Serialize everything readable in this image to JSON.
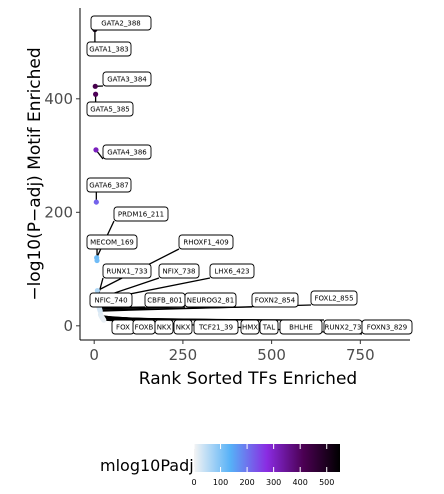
{
  "chart_data": {
    "type": "scatter",
    "title": "",
    "xlabel": "Rank Sorted TFs Enriched",
    "ylabel": "−log10(P−adj) Motif Enriched",
    "xlim": [
      -40,
      890
    ],
    "ylim": [
      -25,
      560
    ],
    "x_ticks": [
      0,
      250,
      500,
      750
    ],
    "x_tick_labels": [
      "0",
      "250",
      "500",
      "750"
    ],
    "y_ticks": [
      0,
      200,
      400
    ],
    "y_tick_labels": [
      "0",
      "200",
      "400"
    ],
    "grid": false,
    "points": [
      {
        "label": "GATA2_388",
        "x": 1,
        "y": 532
      },
      {
        "label": "GATA1_383",
        "x": 2,
        "y": 522
      },
      {
        "label": "GATA3_384",
        "x": 3,
        "y": 422
      },
      {
        "label": "GATA5_385",
        "x": 4,
        "y": 408
      },
      {
        "label": "GATA4_386",
        "x": 5,
        "y": 310
      },
      {
        "label": "GATA6_387",
        "x": 6,
        "y": 218
      },
      {
        "label": "PRDM16_211",
        "x": 7,
        "y": 120
      },
      {
        "label": "MECOM_169",
        "x": 8,
        "y": 115
      },
      {
        "label": "RHOXF1_409",
        "x": 9,
        "y": 62
      },
      {
        "label": "RUNX1_733",
        "x": 10,
        "y": 50
      },
      {
        "label": "NFIX_738",
        "x": 11,
        "y": 48
      },
      {
        "label": "LHX6_423",
        "x": 12,
        "y": 45
      },
      {
        "label": "NFIC_740",
        "x": 13,
        "y": 38
      },
      {
        "label": "CBFB_801",
        "x": 14,
        "y": 32
      },
      {
        "label": "NEUROG2_81",
        "x": 15,
        "y": 30
      },
      {
        "label": "FOXN2_854",
        "x": 16,
        "y": 28
      },
      {
        "label": "FOXL2_855",
        "x": 17,
        "y": 26
      },
      {
        "label": "FOX",
        "x": 18,
        "y": 20
      },
      {
        "label": "FOXB",
        "x": 19,
        "y": 18
      },
      {
        "label": "NKX",
        "x": 20,
        "y": 17
      },
      {
        "label": "NKX",
        "x": 21,
        "y": 16
      },
      {
        "label": "TCF21_39",
        "x": 22,
        "y": 15
      },
      {
        "label": "HMX",
        "x": 23,
        "y": 14
      },
      {
        "label": "TAL",
        "x": 24,
        "y": 13
      },
      {
        "label": "BHLHE",
        "x": 25,
        "y": 12
      },
      {
        "label": "RUNX2_73",
        "x": 26,
        "y": 11
      },
      {
        "label": "FOXN3_829",
        "x": 27,
        "y": 10
      }
    ],
    "color_scale": {
      "title": "mlog10Padj",
      "range": [
        0,
        550
      ],
      "ticks": [
        0,
        100,
        200,
        300,
        400,
        500
      ],
      "tick_labels": [
        "0",
        "100",
        "200",
        "300",
        "400",
        "500"
      ],
      "colors": [
        "#f4f4f4",
        "#56b1f7",
        "#8a2be2",
        "#4b0052",
        "#000000"
      ]
    }
  }
}
